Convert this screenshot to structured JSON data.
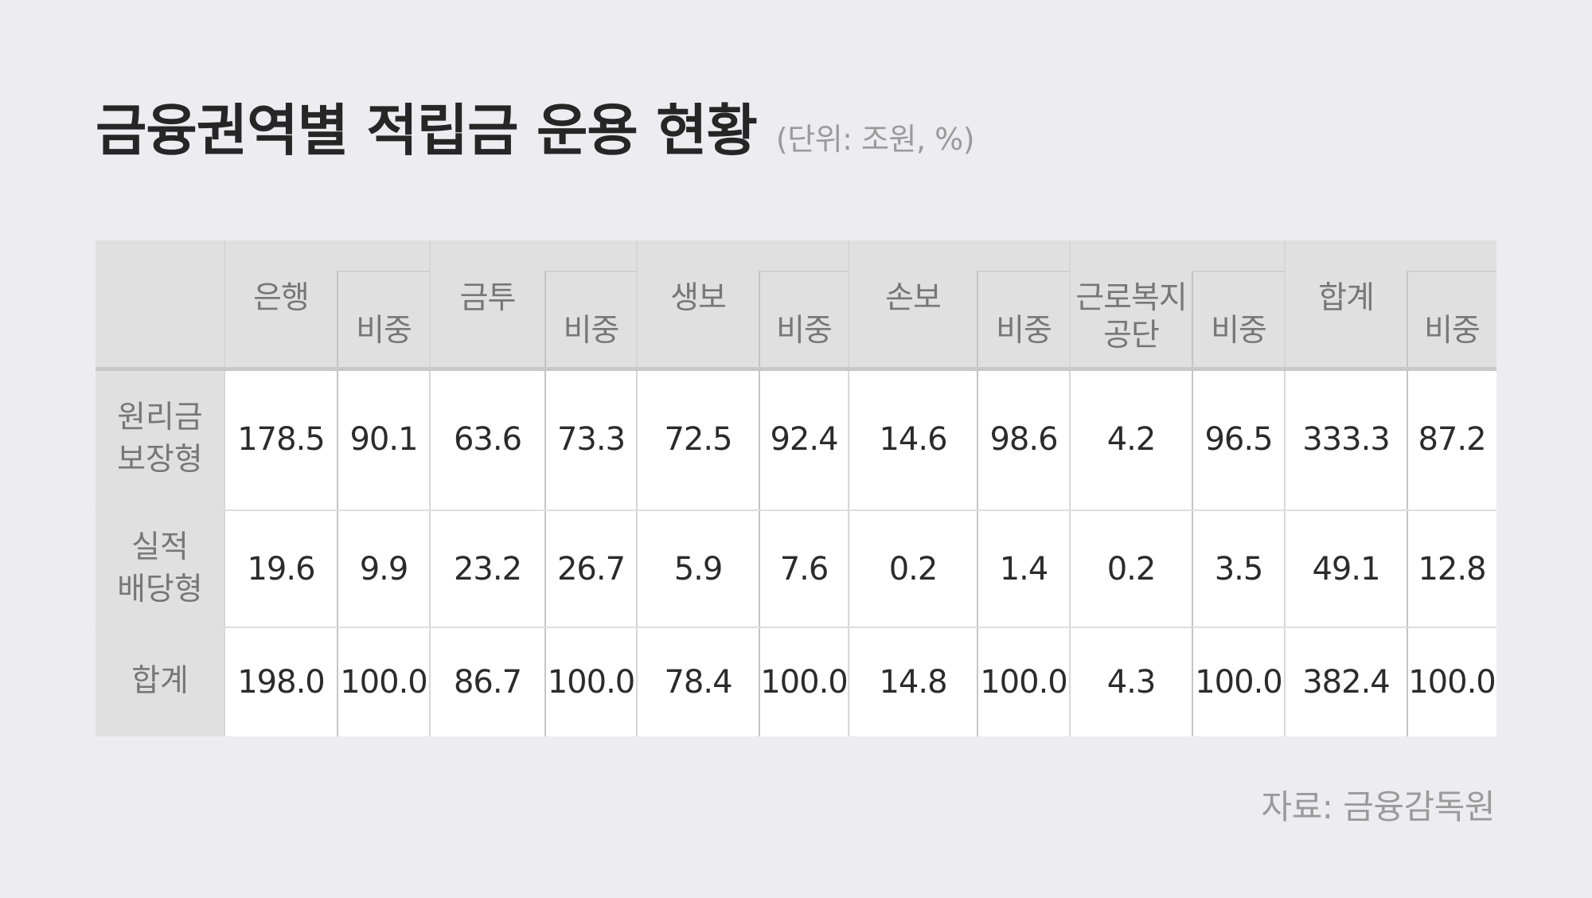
{
  "title": "금융권역별 적립금 운용 현황",
  "unit": "(단위: 조원, %)",
  "source": "자료: 금융감독원",
  "chart_data": {
    "type": "table",
    "title": "금융권역별 적립금 운용 현황",
    "unit": "(단위: 조원, %)",
    "columns": [
      {
        "label": "은행",
        "sub": false
      },
      {
        "label": "비중",
        "sub": true
      },
      {
        "label": "금투",
        "sub": false
      },
      {
        "label": "비중",
        "sub": true
      },
      {
        "label": "생보",
        "sub": false
      },
      {
        "label": "비중",
        "sub": true
      },
      {
        "label": "손보",
        "sub": false
      },
      {
        "label": "비중",
        "sub": true
      },
      {
        "label": "근로복지\n공단",
        "sub": false
      },
      {
        "label": "비중",
        "sub": true
      },
      {
        "label": "합계",
        "sub": false
      },
      {
        "label": "비중",
        "sub": true
      }
    ],
    "rows": [
      {
        "label": "원리금\n보장형",
        "values": [
          "178.5",
          "90.1",
          "63.6",
          "73.3",
          "72.5",
          "92.4",
          "14.6",
          "98.6",
          "4.2",
          "96.5",
          "333.3",
          "87.2"
        ]
      },
      {
        "label": "실적\n배당형",
        "values": [
          "19.6",
          "9.9",
          "23.2",
          "26.7",
          "5.9",
          "7.6",
          "0.2",
          "1.4",
          "0.2",
          "3.5",
          "49.1",
          "12.8"
        ]
      },
      {
        "label": "합계",
        "values": [
          "198.0",
          "100.0",
          "86.7",
          "100.0",
          "78.4",
          "100.0",
          "14.8",
          "100.0",
          "4.3",
          "100.0",
          "382.4",
          "100.0"
        ]
      }
    ],
    "source": "자료: 금융감독원"
  }
}
